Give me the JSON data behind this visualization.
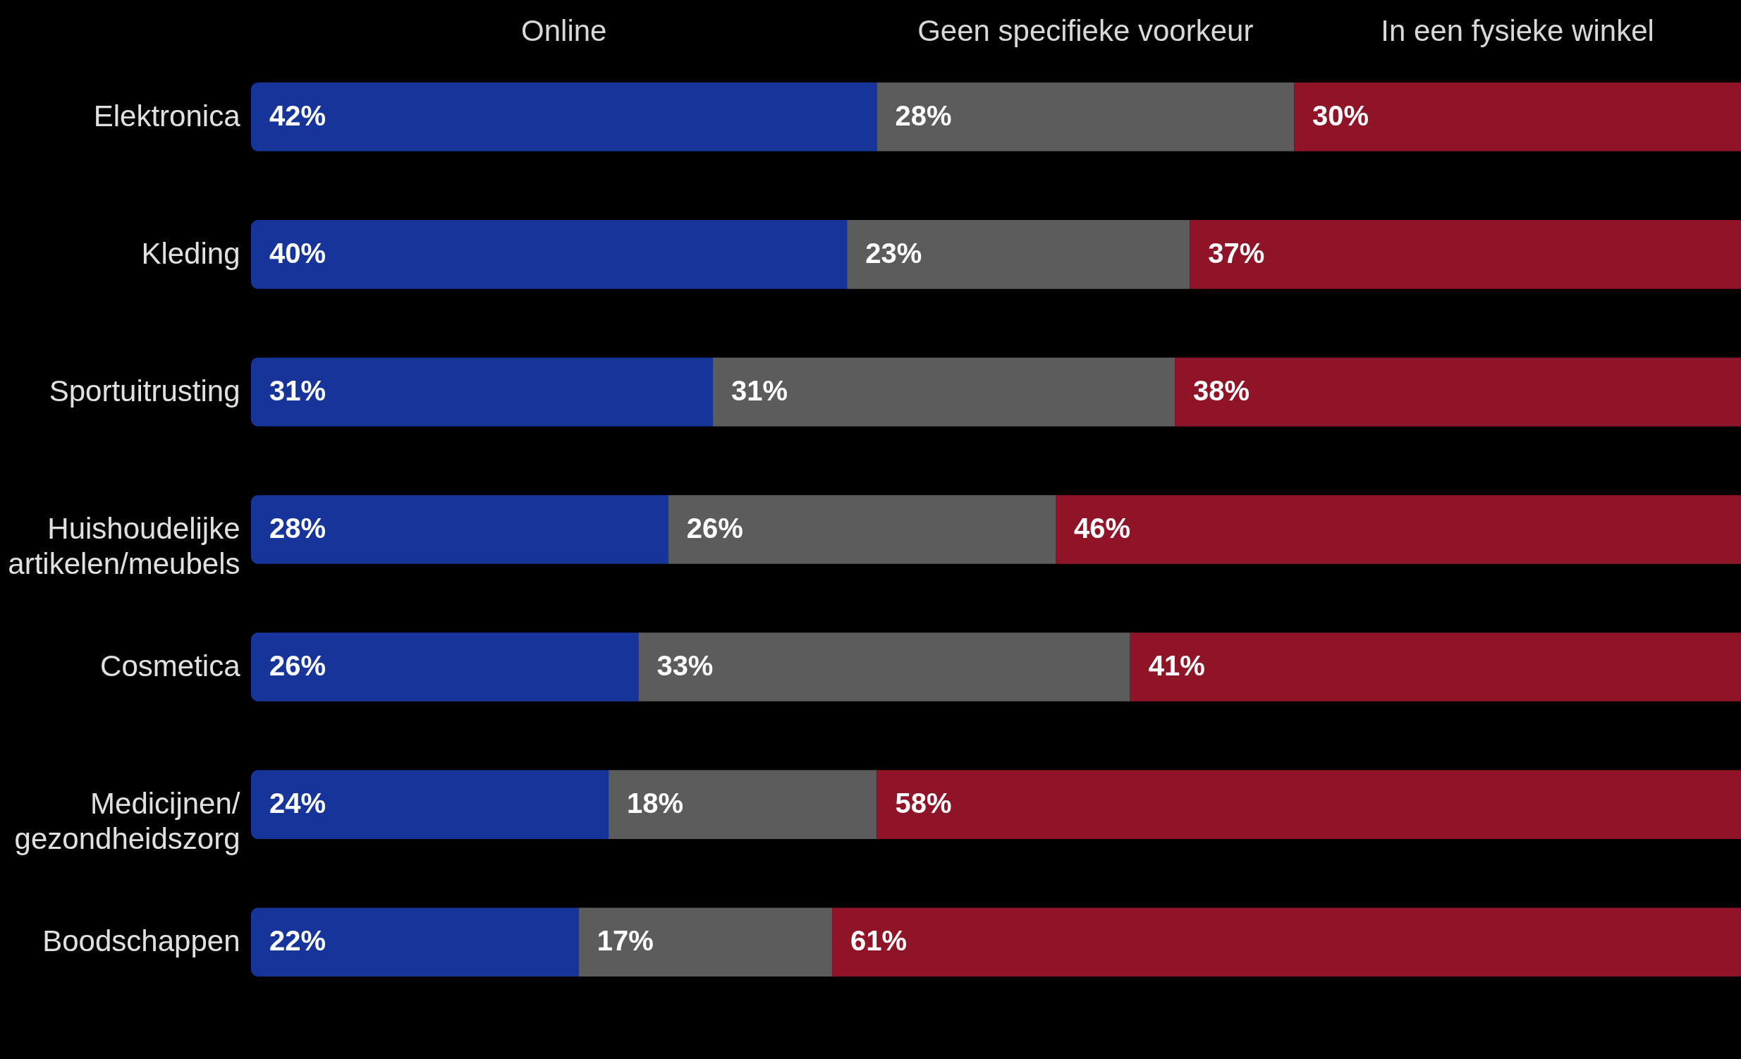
{
  "chart_data": {
    "type": "bar",
    "orientation": "horizontal",
    "stacked": true,
    "legend": "top",
    "tick_labels": "y",
    "grid": false,
    "categories": [
      "Elektronica",
      "Kleding",
      "Sportuitrusting",
      "Huishoudelijke\nartikelen/meubels",
      "Cosmetica",
      "Medicijnen/\ngezondheidszorg",
      "Boodschappen"
    ],
    "series": [
      {
        "name": "Online",
        "color": "#16349a",
        "values": [
          42,
          40,
          31,
          28,
          26,
          24,
          22
        ],
        "value_labels": [
          "42%",
          "40%",
          "31%",
          "28%",
          "26%",
          "24%",
          "22%"
        ]
      },
      {
        "name": "Geen specifieke voorkeur",
        "color": "#5c5c5c",
        "values": [
          28,
          23,
          31,
          26,
          33,
          18,
          17
        ],
        "value_labels": [
          "28%",
          "23%",
          "31%",
          "26%",
          "33%",
          "18%",
          "17%"
        ]
      },
      {
        "name": "In een fysieke winkel",
        "color": "#8f1428",
        "values": [
          30,
          37,
          38,
          46,
          41,
          58,
          61
        ],
        "value_labels": [
          "30%",
          "37%",
          "38%",
          "46%",
          "41%",
          "58%",
          "61%"
        ]
      }
    ]
  }
}
